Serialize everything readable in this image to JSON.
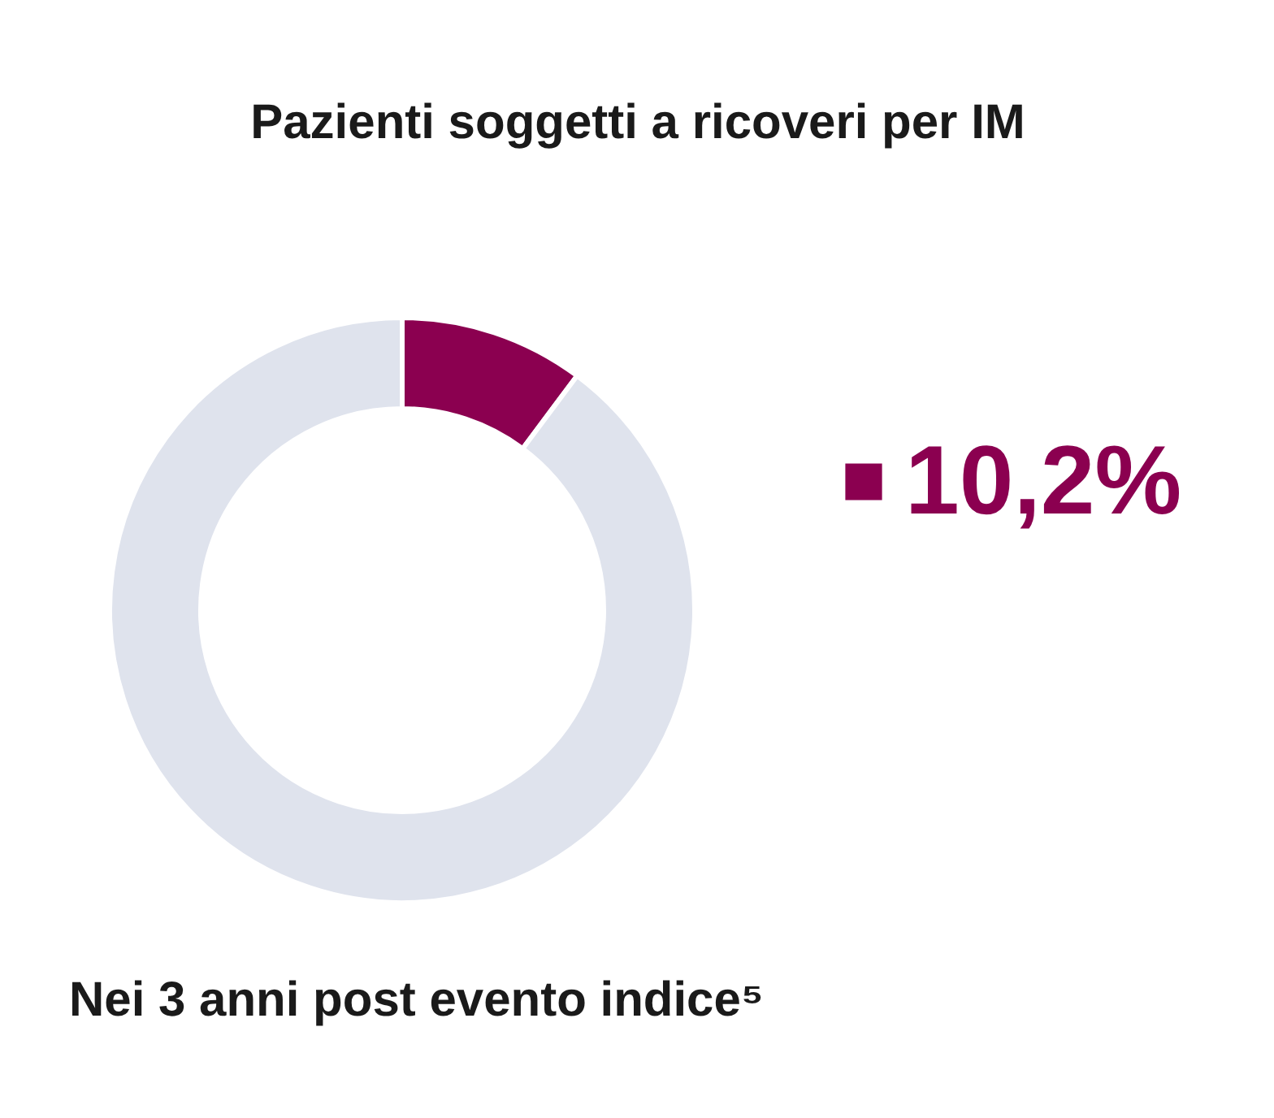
{
  "chart_data": {
    "type": "donut",
    "title": "Pazienti soggetti a ricoveri per IM",
    "subtitle": "Nei 3 anni post evento indice⁵",
    "categories": [
      "10,2%",
      null
    ],
    "values": [
      10.2,
      89.8
    ],
    "colors": [
      "#8b0050",
      "#dfe3ed"
    ],
    "legend": "right"
  }
}
